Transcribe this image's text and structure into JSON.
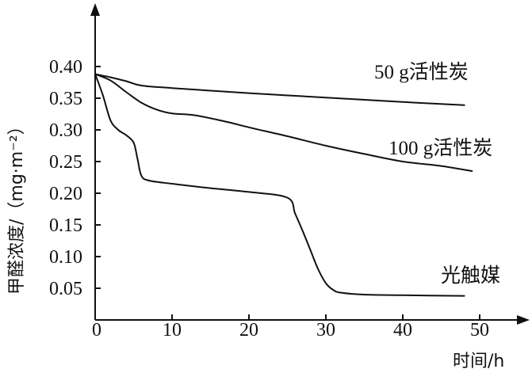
{
  "chart_data": {
    "type": "line",
    "xlabel": "时间/h",
    "ylabel": "甲醛浓度/（mg·m⁻²）",
    "xlim": [
      0,
      50
    ],
    "ylim": [
      0,
      0.43
    ],
    "x_ticks": [
      "0",
      "10",
      "20",
      "30",
      "40",
      "50"
    ],
    "y_ticks": [
      "0.05",
      "0.10",
      "0.15",
      "0.20",
      "0.25",
      "0.30",
      "0.35",
      "0.40"
    ],
    "grid": false,
    "series": [
      {
        "name": "50 g活性炭",
        "x": [
          0,
          2,
          4,
          6,
          10,
          20,
          30,
          40,
          48
        ],
        "y": [
          0.388,
          0.383,
          0.377,
          0.37,
          0.366,
          0.358,
          0.351,
          0.344,
          0.339
        ]
      },
      {
        "name": "100 g活性炭",
        "x": [
          0,
          2,
          4,
          6,
          8,
          10,
          13,
          17,
          20,
          25,
          30,
          35,
          40,
          45,
          49
        ],
        "y": [
          0.388,
          0.378,
          0.36,
          0.343,
          0.332,
          0.326,
          0.323,
          0.313,
          0.304,
          0.29,
          0.275,
          0.262,
          0.25,
          0.243,
          0.235
        ]
      },
      {
        "name": "光触媒",
        "x": [
          0,
          1,
          2,
          3,
          4,
          5,
          5.5,
          6,
          7,
          10,
          15,
          20,
          25,
          26,
          27,
          28,
          29,
          30,
          31,
          32,
          35,
          40,
          48
        ],
        "y": [
          0.388,
          0.355,
          0.315,
          0.3,
          0.292,
          0.28,
          0.255,
          0.228,
          0.22,
          0.215,
          0.208,
          0.202,
          0.193,
          0.168,
          0.14,
          0.11,
          0.08,
          0.058,
          0.047,
          0.043,
          0.04,
          0.039,
          0.038
        ]
      }
    ]
  }
}
